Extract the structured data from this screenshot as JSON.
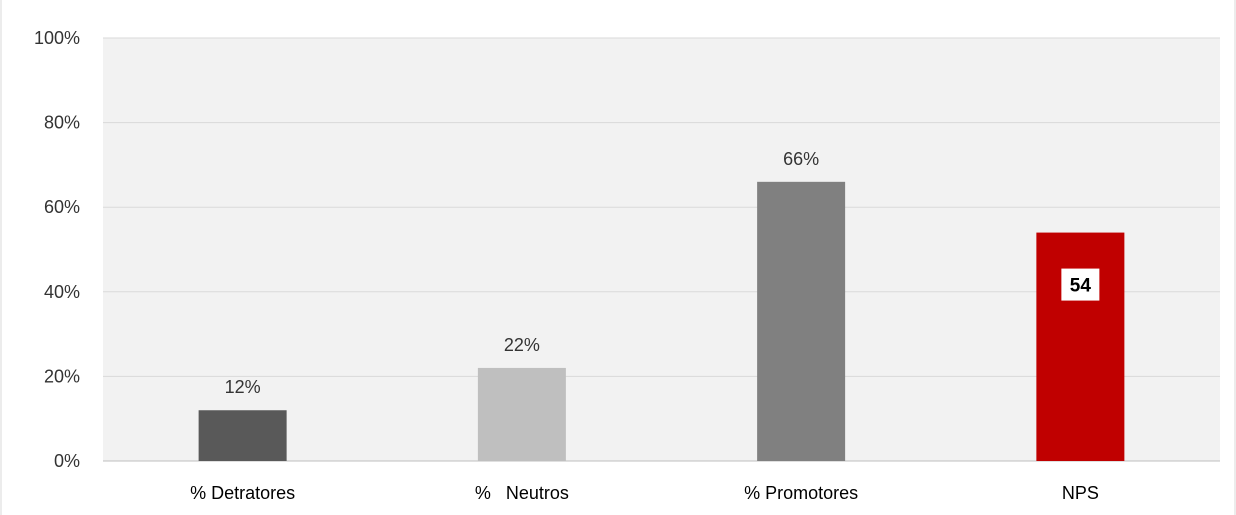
{
  "chart_data": {
    "type": "bar",
    "title": "",
    "xlabel": "",
    "ylabel": "",
    "ylim": [
      0,
      100
    ],
    "yticks": [
      "0%",
      "20%",
      "40%",
      "60%",
      "80%",
      "100%"
    ],
    "grid": true,
    "categories": [
      "% Detratores",
      "%   Neutros",
      "% Promotores",
      "NPS"
    ],
    "values": [
      12,
      22,
      66,
      54
    ],
    "data_labels": [
      "12%",
      "22%",
      "66%",
      "54"
    ],
    "colors": [
      "#595959",
      "#BFBFBF",
      "#808080",
      "#C00000"
    ],
    "plot_background": "#F2F2F2"
  }
}
